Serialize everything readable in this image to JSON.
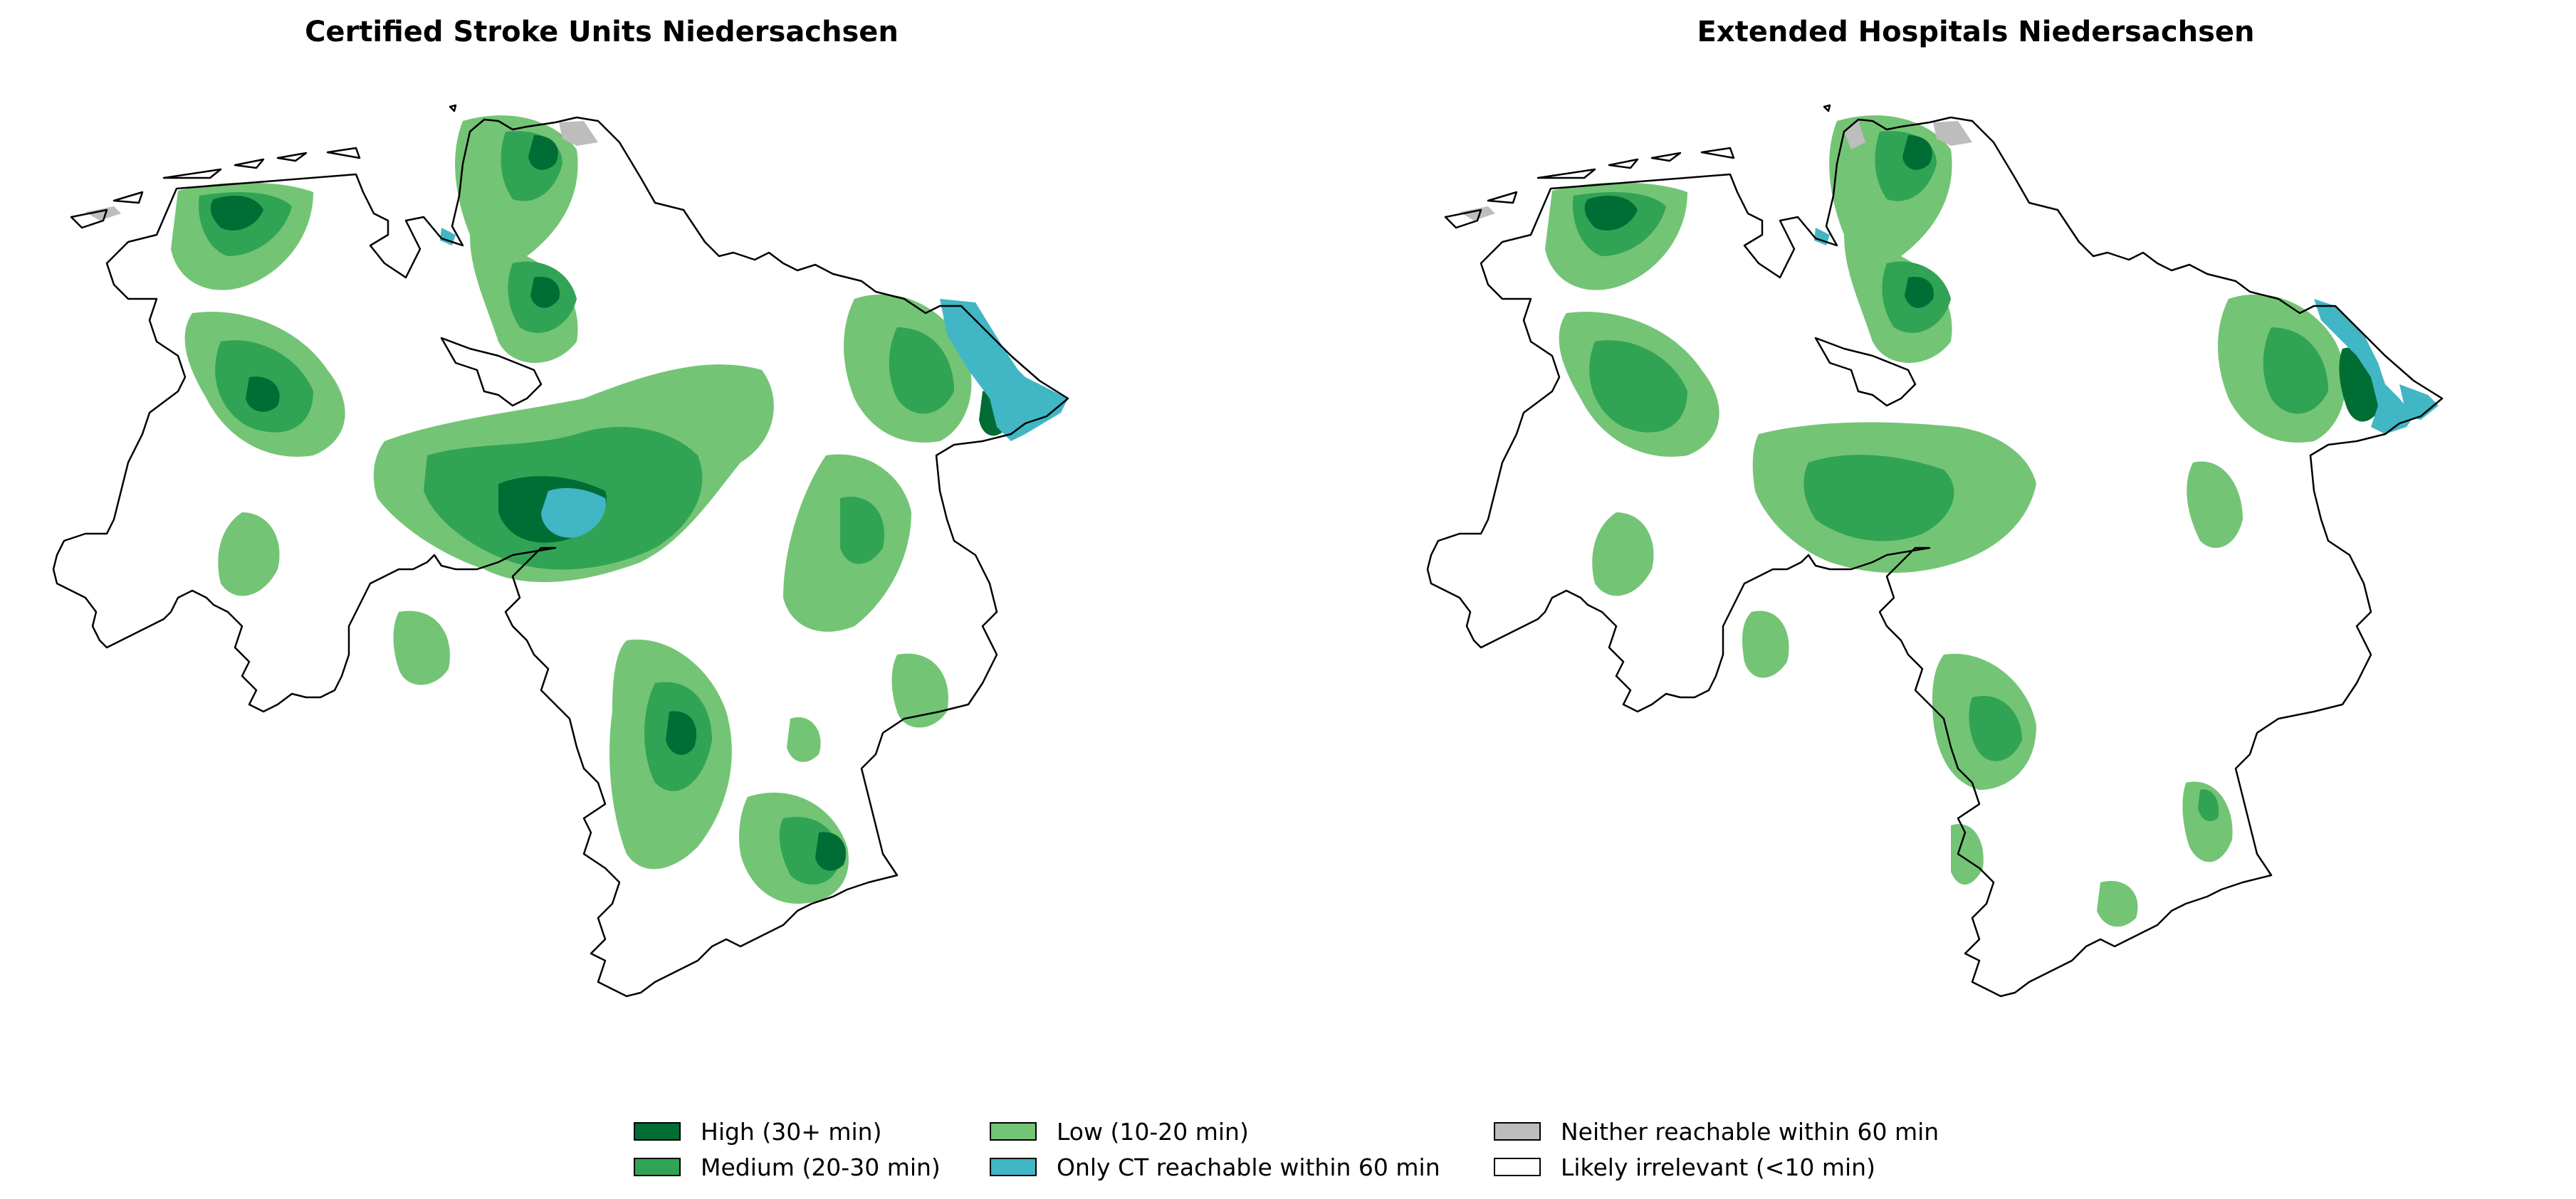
{
  "figure": {
    "panels": [
      {
        "title": "Certified Stroke Units Niedersachsen"
      },
      {
        "title": "Extended Hospitals Niedersachsen"
      }
    ],
    "legend": {
      "items": [
        {
          "label": "High (30+ min)",
          "color": "#006d35"
        },
        {
          "label": "Medium (20-30 min)",
          "color": "#31a354"
        },
        {
          "label": "Low (10-20 min)",
          "color": "#74c476"
        },
        {
          "label": "Only CT reachable within 60 min",
          "color": "#41b6c4"
        },
        {
          "label": "Neither reachable within 60 min",
          "color": "#bdbdbd"
        },
        {
          "label": "Likely irrelevant (<10 min)",
          "color": "#ffffff"
        }
      ]
    }
  }
}
